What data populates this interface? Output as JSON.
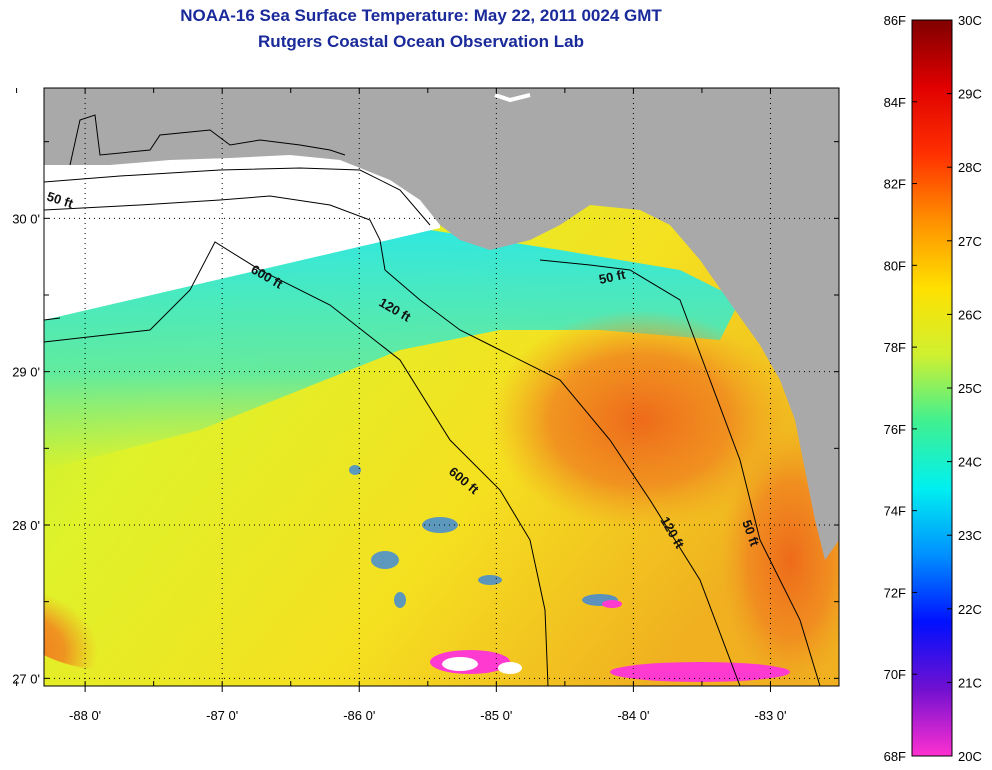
{
  "title": "NOAA-16 Sea Surface Temperature:  May 22, 2011 0024 GMT",
  "subtitle": "Rutgers Coastal Ocean Observation Lab",
  "map": {
    "lon_range": [
      -88.3,
      -82.5
    ],
    "lat_range": [
      26.95,
      30.85
    ],
    "lon_ticks": [
      {
        "value": -88,
        "label": "-88 0'"
      },
      {
        "value": -87,
        "label": "-87 0'"
      },
      {
        "value": -86,
        "label": "-86 0'"
      },
      {
        "value": -85,
        "label": "-85 0'"
      },
      {
        "value": -84,
        "label": "-84 0'"
      },
      {
        "value": -83,
        "label": "-83 0'"
      }
    ],
    "lat_ticks": [
      {
        "value": 30,
        "label": "30 0'"
      },
      {
        "value": 29,
        "label": "29 0'"
      },
      {
        "value": 28,
        "label": "28 0'"
      },
      {
        "value": 27,
        "label": "27 0'"
      }
    ],
    "contours": [
      {
        "label": "50 ft"
      },
      {
        "label": "600 ft"
      },
      {
        "label": "120 ft"
      },
      {
        "label": "50 ft"
      },
      {
        "label": "600 ft"
      },
      {
        "label": "120 ft"
      },
      {
        "label": "50 ft"
      }
    ],
    "colors": {
      "land": "#a9a9a9",
      "no_data": "#ffffff",
      "gridline": "#000000"
    }
  },
  "colorbar": {
    "fahrenheit_labels": [
      "86F",
      "84F",
      "82F",
      "80F",
      "78F",
      "76F",
      "74F",
      "72F",
      "70F",
      "68F"
    ],
    "celsius_labels": [
      "30C",
      "29C",
      "28C",
      "27C",
      "26C",
      "25C",
      "24C",
      "23C",
      "22C",
      "21C",
      "20C"
    ],
    "color_stops": [
      "#ff30d0",
      "#7010d0",
      "#0010ff",
      "#0090ff",
      "#00f0f0",
      "#40f090",
      "#d0f030",
      "#ffe000",
      "#ff9000",
      "#ff3000",
      "#e00000",
      "#800000"
    ]
  }
}
